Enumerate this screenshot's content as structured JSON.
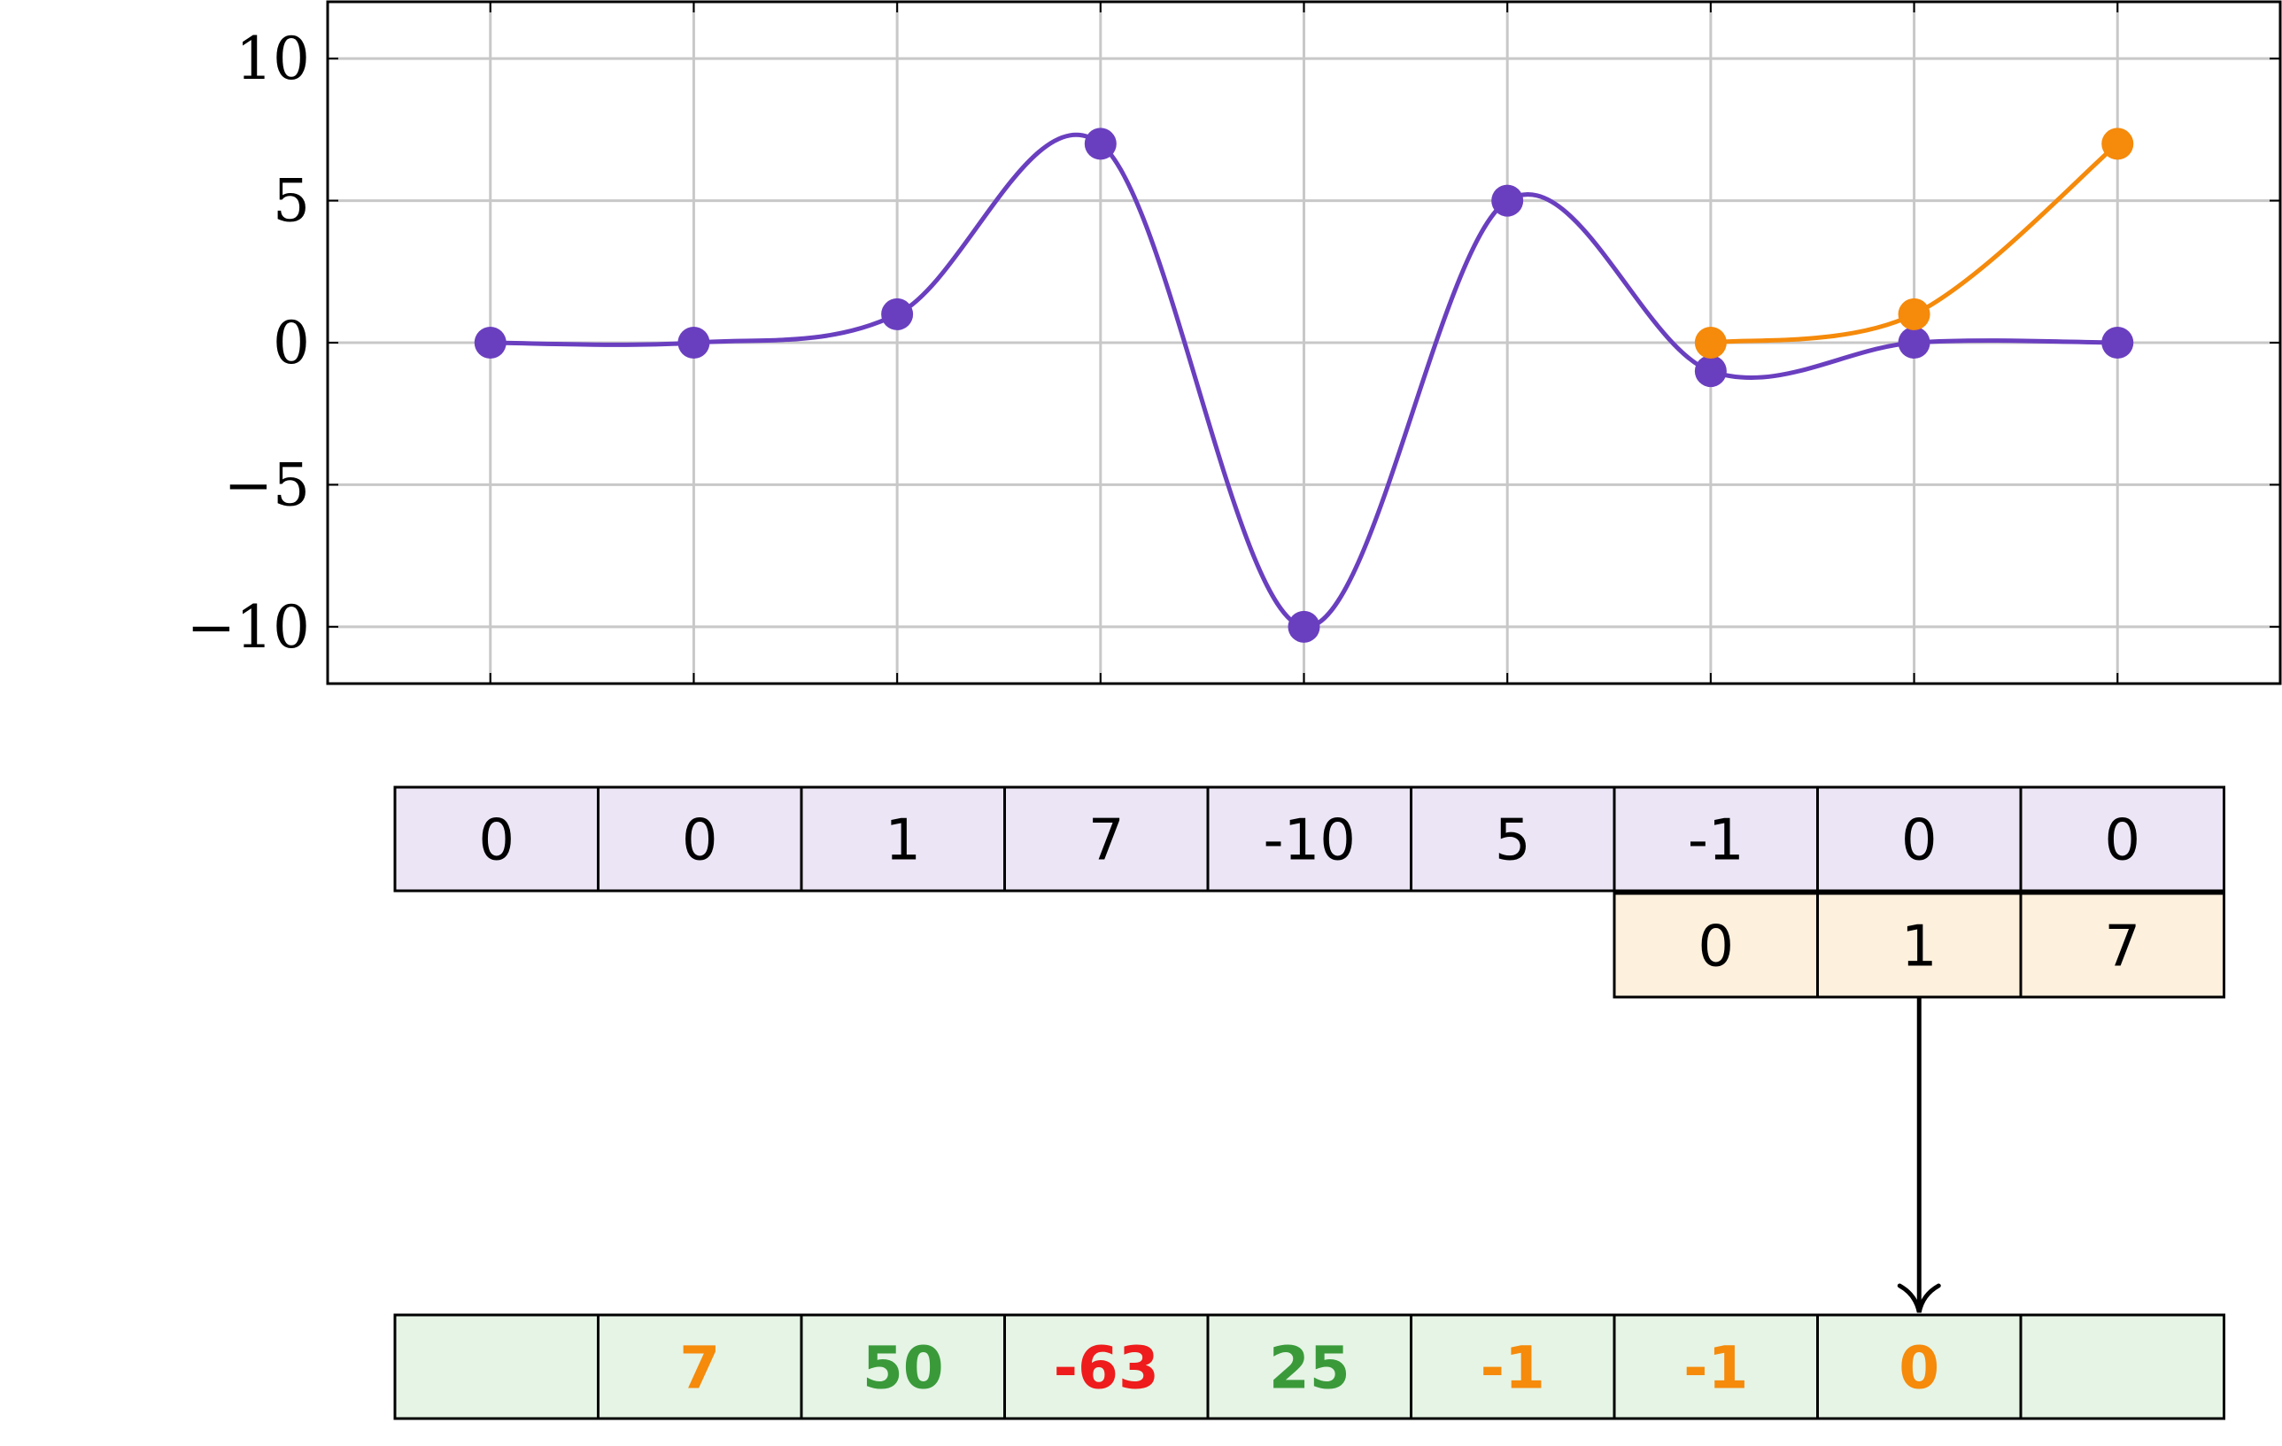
{
  "chart_data": {
    "type": "line",
    "x": [
      1,
      2,
      3,
      4,
      5,
      6,
      7,
      8,
      9
    ],
    "xlim": [
      0.2,
      9.8
    ],
    "ylim": [
      -12,
      12
    ],
    "yticks": [
      -10,
      -5,
      0,
      5,
      10
    ],
    "ytick_labels": [
      "−10",
      "−5",
      "0",
      "5",
      "10"
    ],
    "grid": true,
    "series": [
      {
        "color": "#6a3fbf",
        "x": [
          1,
          2,
          3,
          4,
          5,
          6,
          7,
          8,
          9
        ],
        "values": [
          0,
          0,
          1,
          7,
          -10,
          5,
          -1,
          0,
          0
        ]
      },
      {
        "color": "#f58a0b",
        "x": [
          7,
          8,
          9
        ],
        "values": [
          0,
          1,
          7
        ]
      }
    ]
  },
  "arrays": {
    "row1": {
      "values": [
        "0",
        "0",
        "1",
        "7",
        "-10",
        "5",
        "-1",
        "0",
        "0"
      ],
      "fill": "#ebe5f5"
    },
    "row2": {
      "values": [
        "0",
        "1",
        "7"
      ],
      "fill": "#fdf0dd"
    },
    "row3": {
      "fill": "#e5f4e5",
      "cells": [
        {
          "value": "",
          "color": "#000000"
        },
        {
          "value": "7",
          "color": "#f58a0b"
        },
        {
          "value": "50",
          "color": "#3a9a3a"
        },
        {
          "value": "-63",
          "color": "#ee1c1c"
        },
        {
          "value": "25",
          "color": "#3a9a3a"
        },
        {
          "value": "-1",
          "color": "#f58a0b"
        },
        {
          "value": "-1",
          "color": "#f58a0b"
        },
        {
          "value": "0",
          "color": "#f58a0b"
        },
        {
          "value": "",
          "color": "#000000"
        }
      ]
    }
  }
}
